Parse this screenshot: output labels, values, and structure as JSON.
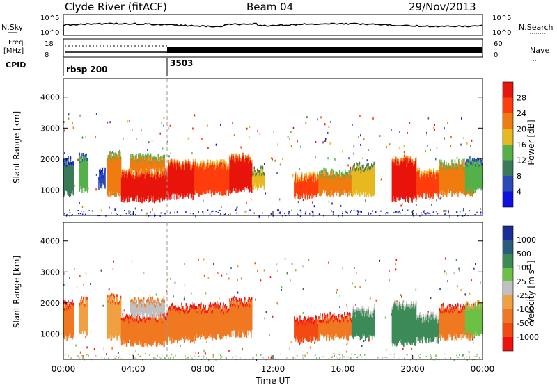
{
  "header": {
    "station": "Clyde River (fitACF)",
    "beam": "Beam 04",
    "date": "29/Nov/2013"
  },
  "panels": {
    "nsky_label": "N.Sky",
    "nsearch_label": "N.Search",
    "noise_ticks": [
      "10^5",
      "10^0"
    ],
    "freq_label_1": "Freq.",
    "freq_label_2": "[MHz]",
    "freq_ticks": [
      "18",
      "8"
    ],
    "nave_label": "Nave",
    "nave_ticks": [
      "60",
      "0"
    ],
    "cpid_label": "CPID",
    "cpid_segments": [
      {
        "label": "rbsp 200",
        "start_hour": 0
      },
      {
        "label": "3503",
        "start_hour": 6
      }
    ]
  },
  "colors": {
    "power": [
      "#1010e0",
      "#2a4ab8",
      "#3a7a5a",
      "#55b04a",
      "#e8b820",
      "#f07c10",
      "#ff3c0c",
      "#e8150c"
    ],
    "velocity": [
      "#f01010",
      "#f24a10",
      "#f07820",
      "#f0a040",
      "#c0c0c0",
      "#6cc046",
      "#3c8a56",
      "#2a5c7c",
      "#1a2c98"
    ]
  },
  "chart_data": [
    {
      "type": "heatmap",
      "name": "power",
      "xlabel": "",
      "ylabel": "Slant Range [km]",
      "xlim": [
        0,
        24
      ],
      "ylim": [
        180,
        4600
      ],
      "yticks": [
        "1000",
        "2000",
        "3000",
        "4000"
      ],
      "colorbar_label": "Power [dB]",
      "colorbar_ticks": [
        "4",
        "8",
        "12",
        "16",
        "20",
        "24",
        "28"
      ],
      "regions": [
        {
          "t0": 0.0,
          "t1": 0.6,
          "r0": 900,
          "r1": 1900,
          "level": 2
        },
        {
          "t0": 0.9,
          "t1": 1.4,
          "r0": 1000,
          "r1": 2000,
          "level": 3
        },
        {
          "t0": 2.0,
          "t1": 2.4,
          "r0": 1100,
          "r1": 1500,
          "level": 1
        },
        {
          "t0": 2.5,
          "t1": 3.3,
          "r0": 900,
          "r1": 2100,
          "level": 5
        },
        {
          "t0": 3.3,
          "t1": 6.0,
          "r0": 700,
          "r1": 1500,
          "level": 7
        },
        {
          "t0": 3.8,
          "t1": 5.8,
          "r0": 1600,
          "r1": 2000,
          "level": 5
        },
        {
          "t0": 6.0,
          "t1": 7.5,
          "r0": 800,
          "r1": 1800,
          "level": 7
        },
        {
          "t0": 7.5,
          "t1": 9.5,
          "r0": 900,
          "r1": 1800,
          "level": 6
        },
        {
          "t0": 9.5,
          "t1": 10.8,
          "r0": 1000,
          "r1": 2000,
          "level": 7
        },
        {
          "t0": 10.8,
          "t1": 11.5,
          "r0": 1100,
          "r1": 1600,
          "level": 4
        },
        {
          "t0": 13.2,
          "t1": 14.6,
          "r0": 800,
          "r1": 1400,
          "level": 6
        },
        {
          "t0": 14.6,
          "t1": 16.5,
          "r0": 900,
          "r1": 1500,
          "level": 5
        },
        {
          "t0": 16.5,
          "t1": 17.8,
          "r0": 900,
          "r1": 1700,
          "level": 4
        },
        {
          "t0": 18.8,
          "t1": 20.2,
          "r0": 700,
          "r1": 1900,
          "level": 7
        },
        {
          "t0": 20.2,
          "t1": 21.5,
          "r0": 800,
          "r1": 1500,
          "level": 6
        },
        {
          "t0": 21.5,
          "t1": 23.5,
          "r0": 900,
          "r1": 1800,
          "level": 5
        },
        {
          "t0": 23.0,
          "t1": 24.0,
          "r0": 1000,
          "r1": 1900,
          "level": 3
        }
      ]
    },
    {
      "type": "heatmap",
      "name": "velocity",
      "xlabel": "Time UT",
      "ylabel": "Slant Range [km]",
      "xlim": [
        0,
        24
      ],
      "ylim": [
        180,
        4600
      ],
      "yticks": [
        "1000",
        "2000",
        "3000",
        "4000"
      ],
      "xticks": [
        "00:00",
        "04:00",
        "08:00",
        "12:00",
        "16:00",
        "20:00",
        "00:00"
      ],
      "colorbar_label": "Velocity [m s-1]",
      "colorbar_ticks": [
        "-1000",
        "-500",
        "-100",
        "-25",
        "25",
        "100",
        "500",
        "1000"
      ],
      "regions": [
        {
          "t0": 0.0,
          "t1": 0.6,
          "r0": 900,
          "r1": 1900,
          "level": 2
        },
        {
          "t0": 0.9,
          "t1": 1.4,
          "r0": 1000,
          "r1": 2000,
          "level": 3
        },
        {
          "t0": 2.5,
          "t1": 3.3,
          "r0": 900,
          "r1": 2100,
          "level": 3
        },
        {
          "t0": 3.3,
          "t1": 6.0,
          "r0": 700,
          "r1": 1500,
          "level": 2
        },
        {
          "t0": 3.8,
          "t1": 5.8,
          "r0": 1600,
          "r1": 2000,
          "level": 4
        },
        {
          "t0": 6.0,
          "t1": 7.5,
          "r0": 800,
          "r1": 1800,
          "level": 2
        },
        {
          "t0": 7.5,
          "t1": 9.5,
          "r0": 900,
          "r1": 1800,
          "level": 2
        },
        {
          "t0": 9.5,
          "t1": 10.8,
          "r0": 1000,
          "r1": 2000,
          "level": 2
        },
        {
          "t0": 13.2,
          "t1": 14.6,
          "r0": 800,
          "r1": 1400,
          "level": 1
        },
        {
          "t0": 14.6,
          "t1": 16.5,
          "r0": 900,
          "r1": 1500,
          "level": 2
        },
        {
          "t0": 16.5,
          "t1": 17.8,
          "r0": 900,
          "r1": 1700,
          "level": 6
        },
        {
          "t0": 18.8,
          "t1": 20.2,
          "r0": 700,
          "r1": 1900,
          "level": 6
        },
        {
          "t0": 20.2,
          "t1": 21.5,
          "r0": 800,
          "r1": 1500,
          "level": 6
        },
        {
          "t0": 21.5,
          "t1": 23.5,
          "r0": 900,
          "r1": 1800,
          "level": 2
        },
        {
          "t0": 23.0,
          "t1": 24.0,
          "r0": 1000,
          "r1": 1900,
          "level": 5
        }
      ]
    }
  ]
}
